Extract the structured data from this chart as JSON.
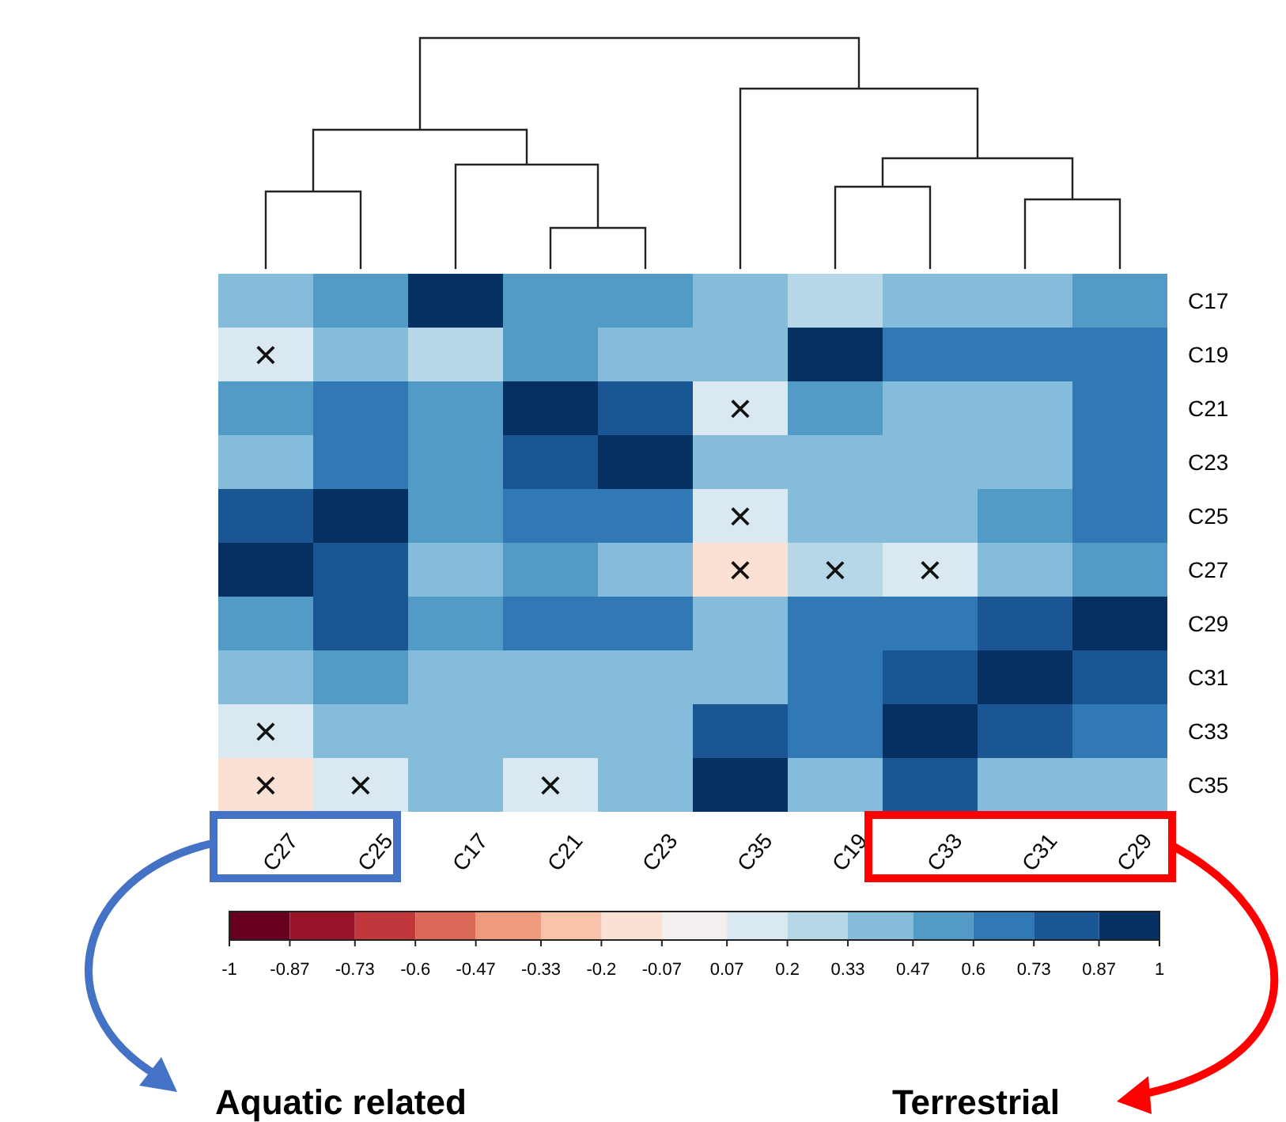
{
  "chart_data": {
    "type": "heatmap",
    "categories": [
      "C27",
      "C25",
      "C17",
      "C21",
      "C23",
      "C35",
      "C19",
      "C33",
      "C31",
      "C29"
    ],
    "y_categories": [
      "C17",
      "C19",
      "C21",
      "C23",
      "C25",
      "C27",
      "C29",
      "C31",
      "C33",
      "C35"
    ],
    "cells": [
      [
        0.42,
        0.55,
        0.93,
        0.5,
        0.55,
        0.42,
        0.22,
        0.38,
        0.36,
        0.5
      ],
      [
        0.12,
        0.38,
        0.22,
        0.5,
        0.45,
        0.38,
        0.93,
        0.62,
        0.67,
        0.67
      ],
      [
        0.5,
        0.67,
        0.5,
        0.93,
        0.8,
        0.12,
        0.5,
        0.36,
        0.36,
        0.65
      ],
      [
        0.42,
        0.7,
        0.55,
        0.8,
        0.93,
        0.42,
        0.45,
        0.45,
        0.36,
        0.65
      ],
      [
        0.8,
        0.93,
        0.55,
        0.67,
        0.7,
        0.12,
        0.4,
        0.36,
        0.55,
        0.73
      ],
      [
        0.93,
        0.8,
        0.42,
        0.5,
        0.42,
        -0.13,
        0.2,
        0.15,
        0.45,
        0.55
      ],
      [
        0.55,
        0.75,
        0.5,
        0.67,
        0.67,
        0.42,
        0.67,
        0.73,
        0.8,
        0.93
      ],
      [
        0.45,
        0.55,
        0.36,
        0.36,
        0.36,
        0.42,
        0.67,
        0.75,
        0.93,
        0.8
      ],
      [
        0.12,
        0.36,
        0.38,
        0.36,
        0.45,
        0.75,
        0.62,
        0.93,
        0.75,
        0.7
      ],
      [
        -0.13,
        0.12,
        0.42,
        0.15,
        0.42,
        0.93,
        0.36,
        0.75,
        0.42,
        0.42
      ]
    ],
    "cell_labels": [
      [
        null,
        null,
        null,
        null,
        null,
        null,
        null,
        null,
        null,
        null
      ],
      [
        "×",
        null,
        null,
        null,
        null,
        null,
        null,
        null,
        null,
        null
      ],
      [
        null,
        null,
        null,
        null,
        null,
        "×",
        null,
        null,
        null,
        null
      ],
      [
        null,
        null,
        null,
        null,
        null,
        null,
        null,
        null,
        null,
        null
      ],
      [
        null,
        null,
        null,
        null,
        null,
        "×",
        null,
        null,
        null,
        null
      ],
      [
        null,
        null,
        null,
        null,
        null,
        "×",
        "×",
        "×",
        null,
        null
      ],
      [
        null,
        null,
        null,
        null,
        null,
        null,
        null,
        null,
        null,
        null
      ],
      [
        null,
        null,
        null,
        null,
        null,
        null,
        null,
        null,
        null,
        null
      ],
      [
        "×",
        null,
        null,
        null,
        null,
        null,
        null,
        null,
        null,
        null
      ],
      [
        "×",
        "×",
        null,
        "×",
        null,
        null,
        null,
        null,
        null,
        null
      ]
    ],
    "clim": [
      -1,
      1
    ],
    "cticks": [
      -1,
      -0.87,
      -0.73,
      -0.6,
      -0.47,
      -0.33,
      -0.2,
      -0.07,
      0.07,
      0.2,
      0.33,
      0.47,
      0.6,
      0.73,
      0.87,
      1
    ],
    "annotations": [
      "Aquatic related",
      "Terrestrial"
    ]
  }
}
